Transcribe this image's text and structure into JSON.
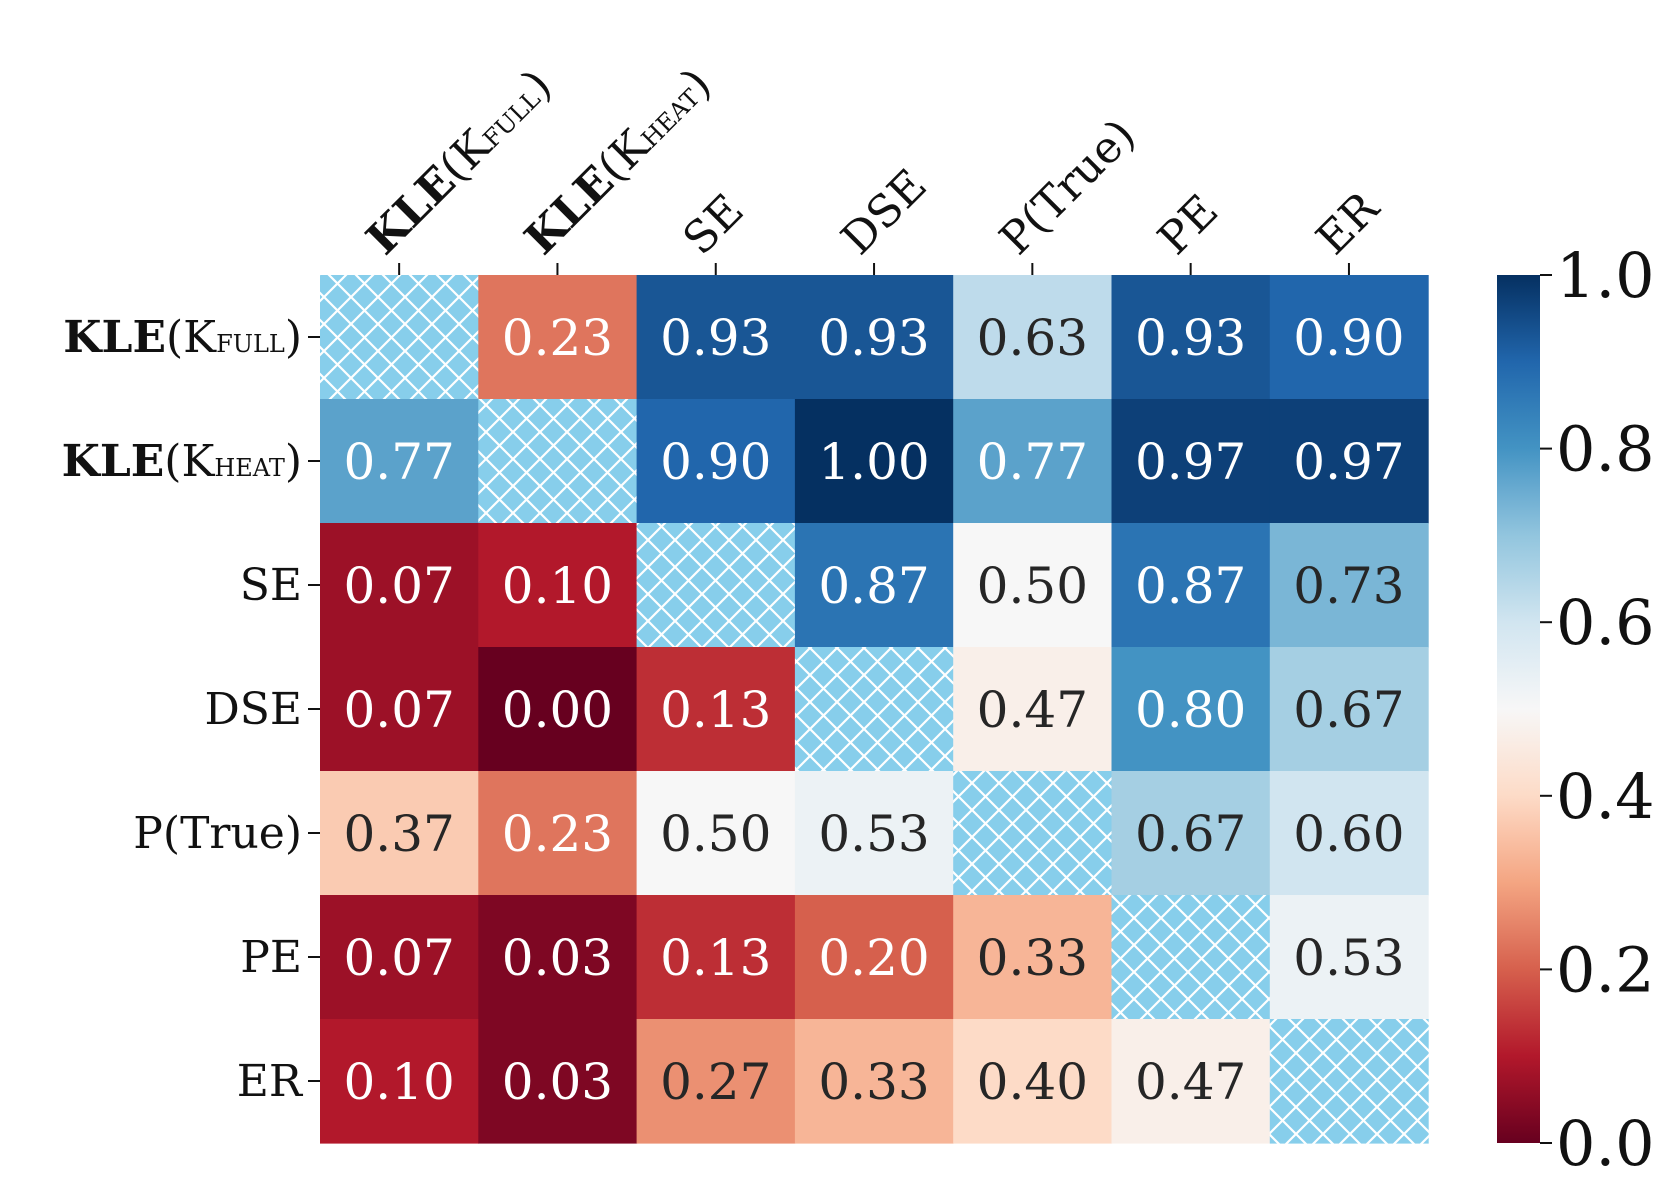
{
  "chart_data": {
    "type": "heatmap",
    "title": "",
    "xlabel": "",
    "ylabel": "",
    "labels": [
      {
        "main": "KLE",
        "open": "(K",
        "sub": "FULL",
        "close": ")",
        "bold": true
      },
      {
        "main": "KLE",
        "open": "(K",
        "sub": "HEAT",
        "close": ")",
        "bold": true
      },
      {
        "main": "SE",
        "open": "",
        "sub": "",
        "close": "",
        "bold": false
      },
      {
        "main": "DSE",
        "open": "",
        "sub": "",
        "close": "",
        "bold": false
      },
      {
        "main": "P(True)",
        "open": "",
        "sub": "",
        "close": "",
        "bold": false
      },
      {
        "main": "PE",
        "open": "",
        "sub": "",
        "close": "",
        "bold": false
      },
      {
        "main": "ER",
        "open": "",
        "sub": "",
        "close": "",
        "bold": false
      }
    ],
    "values": [
      [
        null,
        0.23,
        0.93,
        0.93,
        0.63,
        0.93,
        0.9
      ],
      [
        0.77,
        null,
        0.9,
        1.0,
        0.77,
        0.97,
        0.97
      ],
      [
        0.07,
        0.1,
        null,
        0.87,
        0.5,
        0.87,
        0.73
      ],
      [
        0.07,
        0.0,
        0.13,
        null,
        0.47,
        0.8,
        0.67
      ],
      [
        0.37,
        0.23,
        0.5,
        0.53,
        null,
        0.67,
        0.6
      ],
      [
        0.07,
        0.03,
        0.13,
        0.2,
        0.33,
        null,
        0.53
      ],
      [
        0.1,
        0.03,
        0.27,
        0.33,
        0.4,
        0.47,
        null
      ]
    ],
    "diagonal": "hatched",
    "colormap": "RdBu",
    "vmin": 0.0,
    "vmax": 1.0,
    "colorbar_ticks": [
      "0.0",
      "0.2",
      "0.4",
      "0.6",
      "0.8",
      "1.0"
    ],
    "colors": {
      "hatch_bg": "#87ceeb",
      "hatch_line": "#ffffff",
      "light_text": "#ffffff",
      "dark_text": "#262626"
    }
  }
}
